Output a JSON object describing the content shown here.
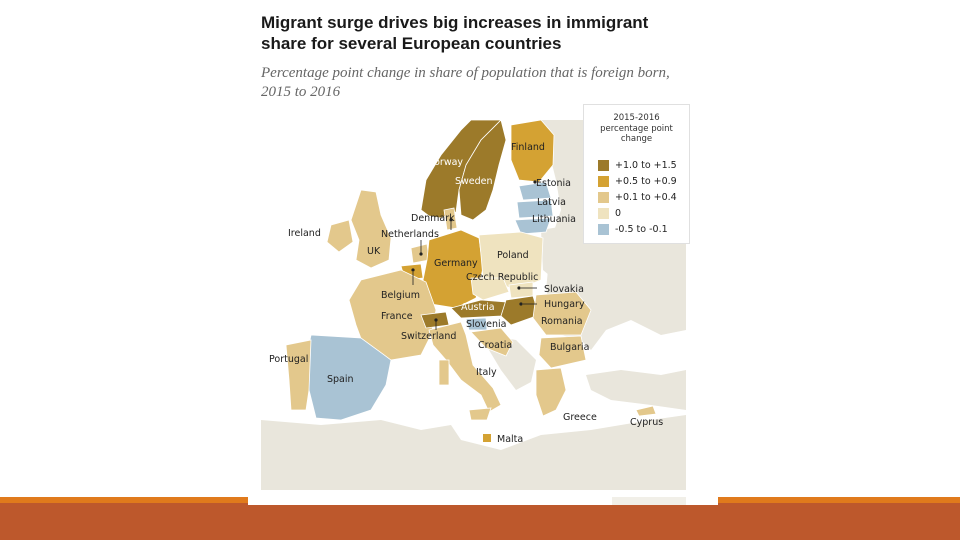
{
  "title": "Migrant surge drives big increases in immigrant share for several European countries",
  "subtitle": "Percentage point change in share of population that is foreign born, 2015 to 2016",
  "legend": {
    "title": "2015-2016 percentage point change",
    "items": [
      {
        "label": "+1.0 to +1.5",
        "color": "#9c7a2a"
      },
      {
        "label": "+0.5 to +0.9",
        "color": "#d4a233"
      },
      {
        "label": "+0.1 to +0.4",
        "color": "#e3c88c"
      },
      {
        "label": "0",
        "color": "#efe3bf"
      },
      {
        "label": "-0.5 to -0.1",
        "color": "#a9c3d4"
      }
    ]
  },
  "countries": {
    "norway": "Norway",
    "sweden": "Sweden",
    "finland": "Finland",
    "estonia": "Estonia",
    "latvia": "Latvia",
    "lithuania": "Lithuania",
    "denmark": "Denmark",
    "ireland": "Ireland",
    "netherlands": "Netherlands",
    "uk": "UK",
    "poland": "Poland",
    "germany": "Germany",
    "czech": "Czech Republic",
    "belgium": "Belgium",
    "slovakia": "Slovakia",
    "austria": "Austria",
    "hungary": "Hungary",
    "france": "France",
    "slovenia": "Slovenia",
    "romania": "Romania",
    "switzerland": "Switzerland",
    "croatia": "Croatia",
    "bulgaria": "Bulgaria",
    "portugal": "Portugal",
    "spain": "Spain",
    "italy": "Italy",
    "greece": "Greece",
    "cyprus": "Cyprus",
    "malta": "Malta"
  },
  "colors": {
    "sea": "#ffffff",
    "non_eu": "#e9e6dc",
    "border": "#ffffff",
    "slide_bar": "#bd582c",
    "slide_bar_accent": "#e07a1c"
  }
}
